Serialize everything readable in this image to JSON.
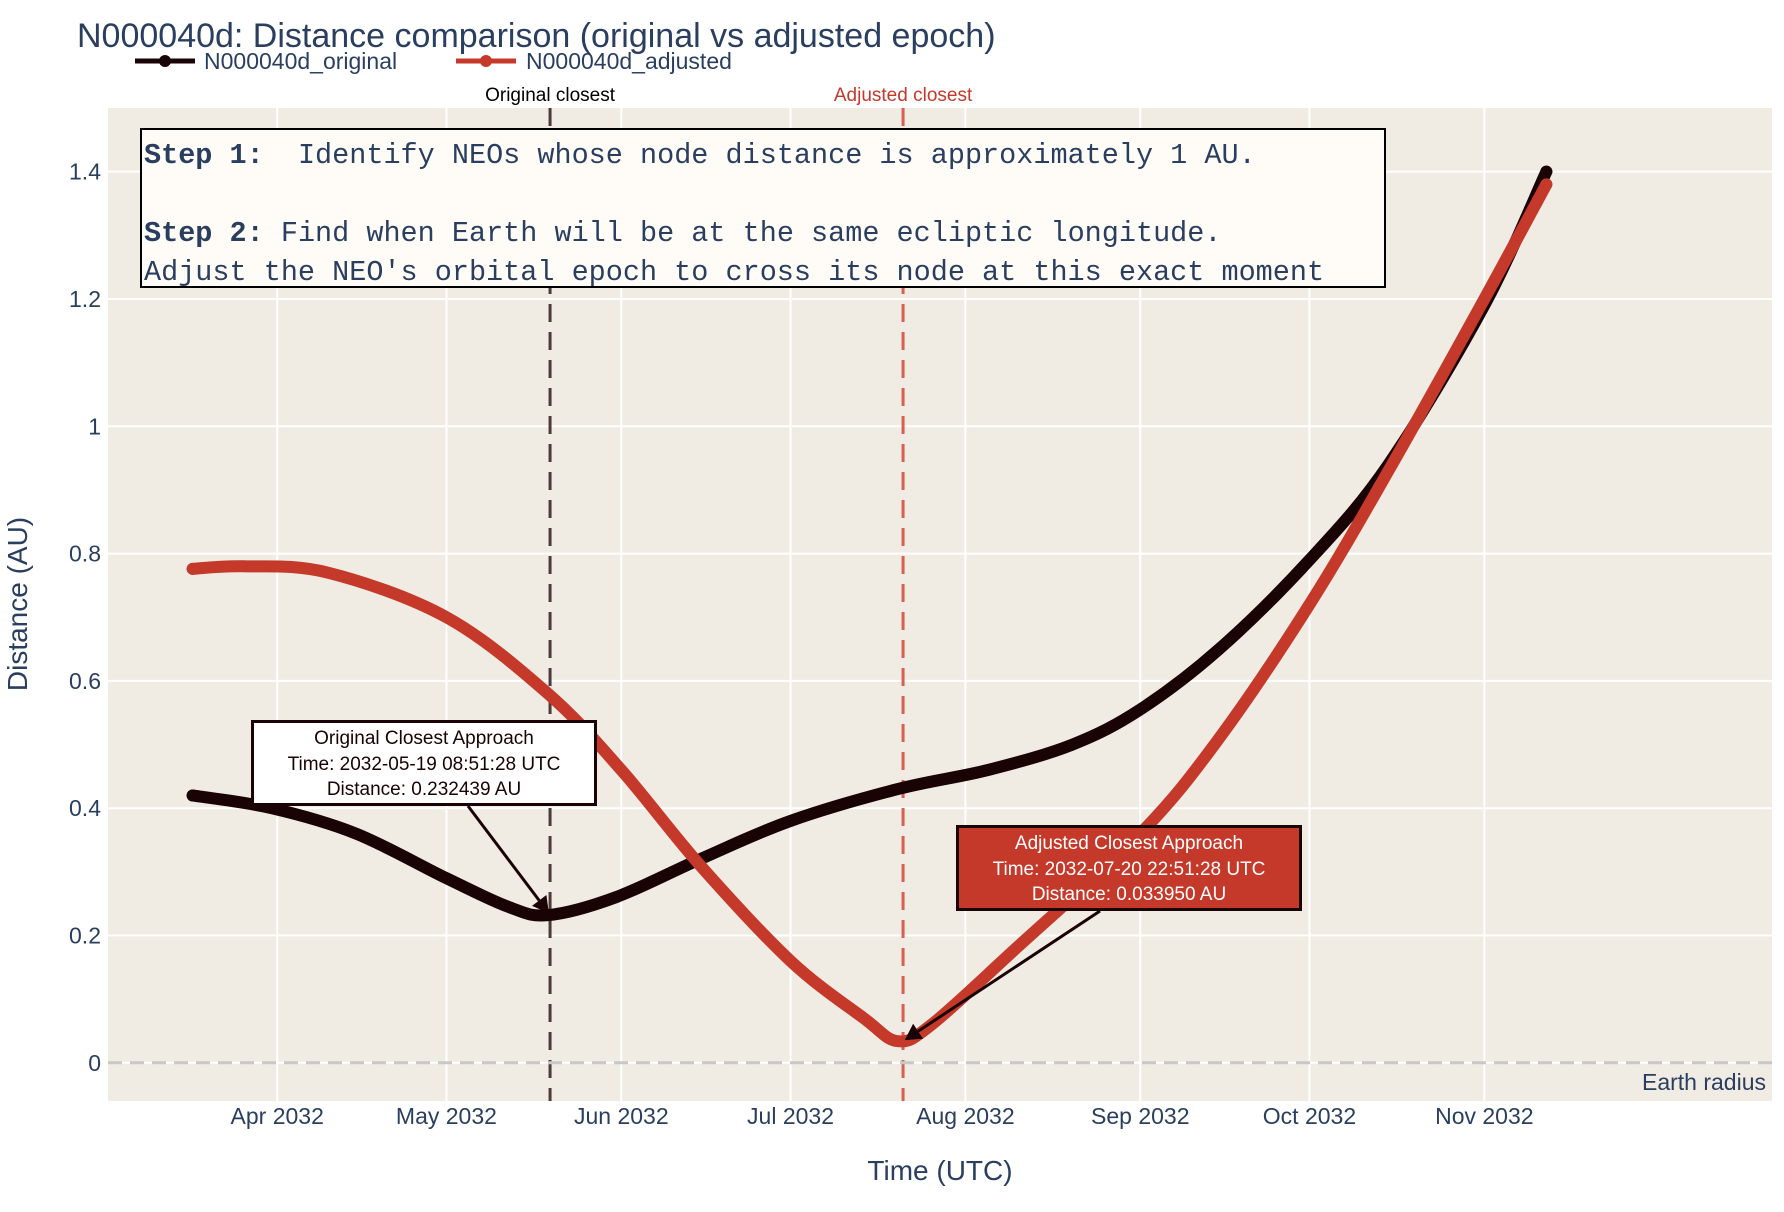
{
  "chart_data": {
    "type": "line",
    "title": "N000040d: Distance comparison (original vs adjusted epoch)",
    "xlabel": "Time (UTC)",
    "ylabel": "Distance (AU)",
    "x_ticks": [
      "Apr 2032",
      "May 2032",
      "Jun 2032",
      "Jul 2032",
      "Aug 2032",
      "Sep 2032",
      "Oct 2032",
      "Nov 2032"
    ],
    "x_tick_dates": [
      "2032-04-01",
      "2032-05-01",
      "2032-06-01",
      "2032-07-01",
      "2032-08-01",
      "2032-09-01",
      "2032-10-01",
      "2032-11-01"
    ],
    "x_range": [
      "2032-03-02",
      "2032-12-22"
    ],
    "y_ticks": [
      "0",
      "0.2",
      "0.4",
      "0.6",
      "0.8",
      "1",
      "1.2",
      "1.4"
    ],
    "y_tick_values": [
      0,
      0.2,
      0.4,
      0.6,
      0.8,
      1.0,
      1.2,
      1.4
    ],
    "ylim": [
      -0.06,
      1.5
    ],
    "legend": "top-left, horizontal",
    "background": "#f0ebe3",
    "series": [
      {
        "name": "N000040d_original",
        "color": "#1a0304",
        "x": [
          "2032-03-17",
          "2032-03-31",
          "2032-04-15",
          "2032-05-01",
          "2032-05-12",
          "2032-05-19",
          "2032-05-31",
          "2032-06-15",
          "2032-07-01",
          "2032-07-20",
          "2032-08-05",
          "2032-08-20",
          "2032-09-01",
          "2032-09-15",
          "2032-10-01",
          "2032-10-15",
          "2032-11-01",
          "2032-11-12"
        ],
        "y": [
          0.42,
          0.4,
          0.36,
          0.29,
          0.245,
          0.232,
          0.26,
          0.32,
          0.38,
          0.43,
          0.46,
          0.5,
          0.555,
          0.65,
          0.79,
          0.94,
          1.19,
          1.4
        ]
      },
      {
        "name": "N000040d_adjusted",
        "color": "#c4392a",
        "x": [
          "2032-03-17",
          "2032-03-26",
          "2032-04-10",
          "2032-05-01",
          "2032-05-19",
          "2032-06-01",
          "2032-06-15",
          "2032-07-01",
          "2032-07-14",
          "2032-07-20",
          "2032-07-26",
          "2032-08-10",
          "2032-09-01",
          "2032-09-15",
          "2032-10-01",
          "2032-10-15",
          "2032-11-01",
          "2032-11-12"
        ],
        "y": [
          0.776,
          0.78,
          0.77,
          0.7,
          0.58,
          0.46,
          0.31,
          0.16,
          0.07,
          0.034,
          0.06,
          0.18,
          0.36,
          0.51,
          0.72,
          0.93,
          1.2,
          1.38
        ]
      }
    ],
    "vlines": [
      {
        "label": "Original closest",
        "x": "2032-05-19T08:51:28",
        "color": "#4d3a3a"
      },
      {
        "label": "Adjusted closest",
        "x": "2032-07-20T22:51:28",
        "color": "#d9604f"
      }
    ],
    "hline": {
      "label": "Earth radius",
      "y": 0
    },
    "annotations": {
      "original": {
        "line1": "Original Closest Approach",
        "line2": "Time: 2032-05-19 08:51:28 UTC",
        "line3": "Distance: 0.232439 AU",
        "x": "2032-05-19T08:51:28",
        "y": 0.232439
      },
      "adjusted": {
        "line1": "Adjusted Closest Approach",
        "line2": "Time: 2032-07-20 22:51:28 UTC",
        "line3": "Distance: 0.033950 AU",
        "x": "2032-07-20T22:51:28",
        "y": 0.03395
      }
    },
    "info_box": {
      "step1_label": "Step 1:",
      "step1_text": "  Identify NEOs whose node distance is approximately 1 AU.",
      "step2_label": "Step 2:",
      "step2_text": " Find when Earth will be at the same ecliptic longitude.",
      "step3_text": "Adjust the NEO's orbital epoch to cross its node at this exact moment"
    }
  }
}
